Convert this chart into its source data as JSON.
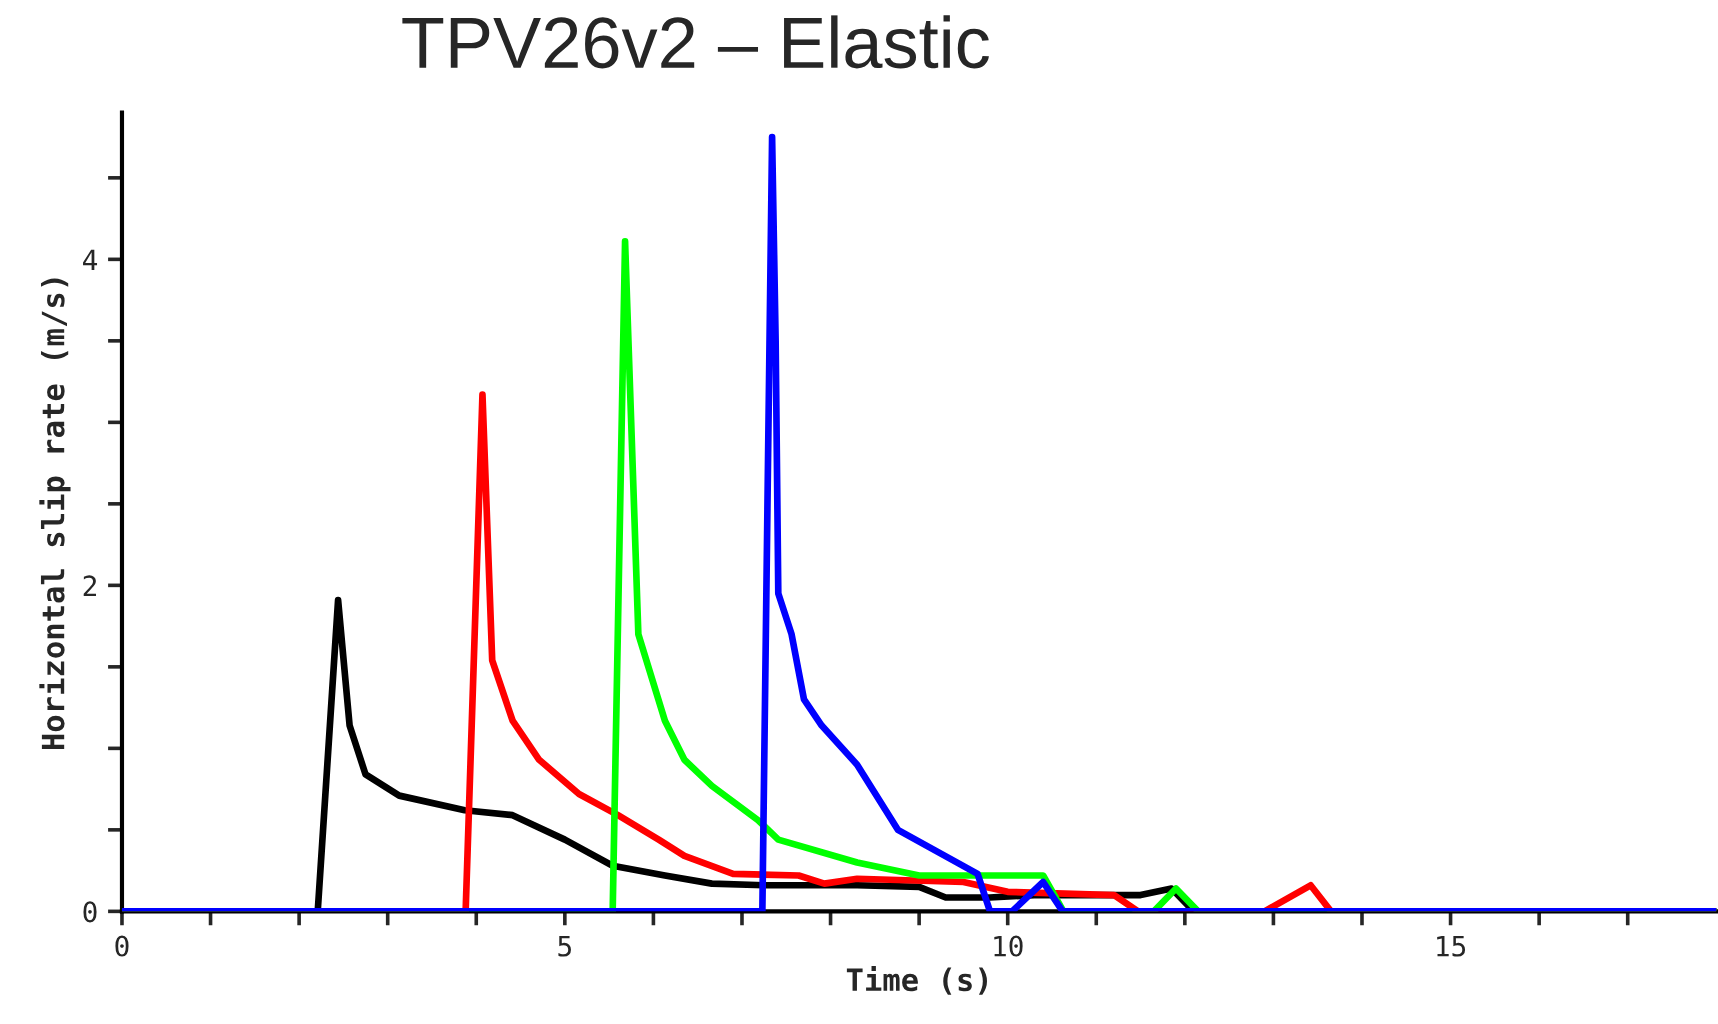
{
  "chart_data": {
    "type": "line",
    "title": "TPV26v2 – Elastic",
    "xlabel": "Time (s)",
    "ylabel": "Horizontal slip rate (m/s)",
    "xlim": [
      0,
      18
    ],
    "ylim": [
      0,
      4.9
    ],
    "xticks": [
      0,
      {
        "value": 1,
        "label": null
      },
      {
        "value": 2,
        "label": null
      },
      {
        "value": 3,
        "label": null
      },
      {
        "value": 4,
        "label": null
      },
      5,
      {
        "value": 6,
        "label": null
      },
      {
        "value": 7,
        "label": null
      },
      {
        "value": 8,
        "label": null
      },
      {
        "value": 9,
        "label": null
      },
      10,
      {
        "value": 11,
        "label": null
      },
      {
        "value": 12,
        "label": null
      },
      {
        "value": 13,
        "label": null
      },
      {
        "value": 14,
        "label": null
      },
      15,
      {
        "value": 16,
        "label": null
      },
      {
        "value": 17,
        "label": null
      }
    ],
    "yticks": [
      0,
      {
        "value": 0.5,
        "label": null
      },
      {
        "value": 1,
        "label": null
      },
      {
        "value": 1.5,
        "label": null
      },
      2,
      {
        "value": 2.5,
        "label": null
      },
      {
        "value": 3,
        "label": null
      },
      {
        "value": 3.5,
        "label": null
      },
      4,
      {
        "value": 4.5,
        "label": null
      }
    ],
    "grid": false,
    "legend": false,
    "marker": "none",
    "line_style": "solid",
    "series": [
      {
        "color": "#000000",
        "x": [
          0,
          2.21,
          2.44,
          2.57,
          2.75,
          3.13,
          3.87,
          4.41,
          5.0,
          5.54,
          6.13,
          6.66,
          7.25,
          8.3,
          9.0,
          9.3,
          9.8,
          10.3,
          11.5,
          11.85,
          12.1,
          18
        ],
        "values": [
          0,
          0,
          1.91,
          1.14,
          0.84,
          0.71,
          0.62,
          0.59,
          0.44,
          0.28,
          0.22,
          0.17,
          0.16,
          0.16,
          0.15,
          0.085,
          0.085,
          0.1,
          0.1,
          0.14,
          0,
          0
        ]
      },
      {
        "color": "#ff0000",
        "x": [
          0,
          3.88,
          4.07,
          4.18,
          4.41,
          4.71,
          5.16,
          5.6,
          6.06,
          6.35,
          6.9,
          7.64,
          7.93,
          8.3,
          9.5,
          10.0,
          11.2,
          11.47,
          12.9,
          13.42,
          13.65,
          18
        ],
        "values": [
          0,
          0,
          3.17,
          1.54,
          1.17,
          0.93,
          0.72,
          0.59,
          0.44,
          0.34,
          0.23,
          0.22,
          0.17,
          0.2,
          0.18,
          0.12,
          0.1,
          0,
          0,
          0.16,
          0,
          0
        ]
      },
      {
        "color": "#00ff00",
        "x": [
          0,
          5.54,
          5.68,
          5.83,
          6.13,
          6.35,
          6.66,
          7.18,
          7.41,
          8.3,
          9.0,
          10.4,
          10.63,
          11.65,
          11.9,
          12.15,
          18
        ],
        "values": [
          0,
          0,
          4.11,
          1.7,
          1.17,
          0.93,
          0.77,
          0.56,
          0.44,
          0.3,
          0.22,
          0.22,
          0,
          0,
          0.14,
          0,
          0
        ]
      },
      {
        "color": "#0000ff",
        "x": [
          0,
          7.23,
          7.34,
          7.38,
          7.41,
          7.56,
          7.7,
          7.9,
          8.3,
          8.76,
          9.66,
          9.8,
          10.05,
          10.4,
          10.62,
          18
        ],
        "values": [
          0,
          0,
          4.75,
          3.5,
          1.95,
          1.7,
          1.3,
          1.14,
          0.9,
          0.5,
          0.23,
          0,
          0,
          0.18,
          0,
          0
        ]
      }
    ]
  }
}
